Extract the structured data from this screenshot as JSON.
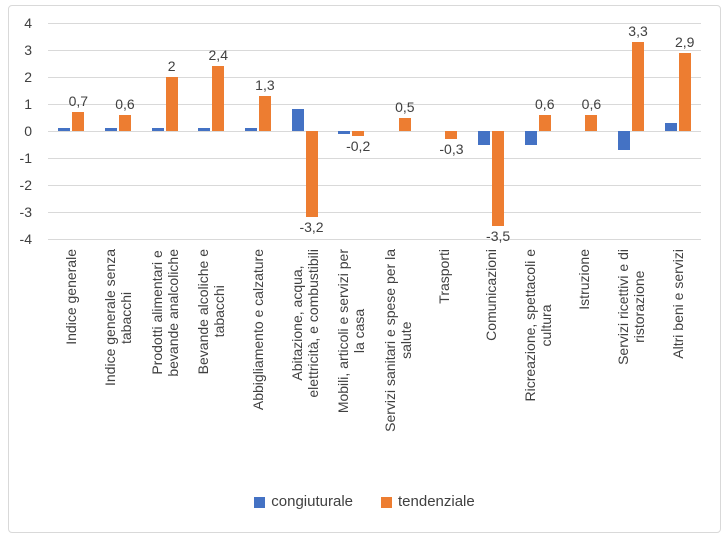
{
  "frame": {
    "background": "#ffffff",
    "border_color": "#d9d9d9"
  },
  "chart_data": {
    "type": "bar",
    "title": "",
    "xlabel": "",
    "ylabel": "",
    "ylim": [
      -4,
      4
    ],
    "yticks": [
      4,
      3,
      2,
      1,
      0,
      -1,
      -2,
      -3,
      -4
    ],
    "grid": true,
    "grid_color": "#d9d9d9",
    "text_color": "#404040",
    "legend_position": "bottom",
    "categories": [
      "Indice generale",
      "Indice generale senza\ntabacchi",
      "Prodotti alimentari e\nbevande analcoliche",
      "Bevande alcoliche e\ntabacchi",
      "Abbigliamento e calzature",
      "Abitazione, acqua,\nelettricità, e combustibili",
      "Mobili, articoli e servizi per\nla casa",
      "Servizi sanitari e spese per la\nsalute",
      "Trasporti",
      "Comunicazioni",
      "Ricreazione, spettacoli e\ncultura",
      "Istruzione",
      "Servizi ricettivi e di\nristorazione",
      "Altri beni e servizi"
    ],
    "series": [
      {
        "name": "congiuturale",
        "color": "#4472C4",
        "values": [
          0.1,
          0.1,
          0.1,
          0.1,
          0.1,
          0.8,
          -0.1,
          0,
          0,
          -0.5,
          -0.5,
          0,
          -0.7,
          0.3
        ],
        "data_labels": null
      },
      {
        "name": "tendenziale",
        "color": "#ED7D31",
        "values": [
          0.7,
          0.6,
          2,
          2.4,
          1.3,
          -3.2,
          -0.2,
          0.5,
          -0.3,
          -3.5,
          0.6,
          0.6,
          3.3,
          2.9
        ],
        "data_labels": [
          "0,7",
          "0,6",
          "2",
          "2,4",
          "1,3",
          "-3,2",
          "-0,2",
          "0,5",
          "-0,3",
          "-3,5",
          "0,6",
          "0,6",
          "3,3",
          "2,9"
        ]
      }
    ]
  }
}
